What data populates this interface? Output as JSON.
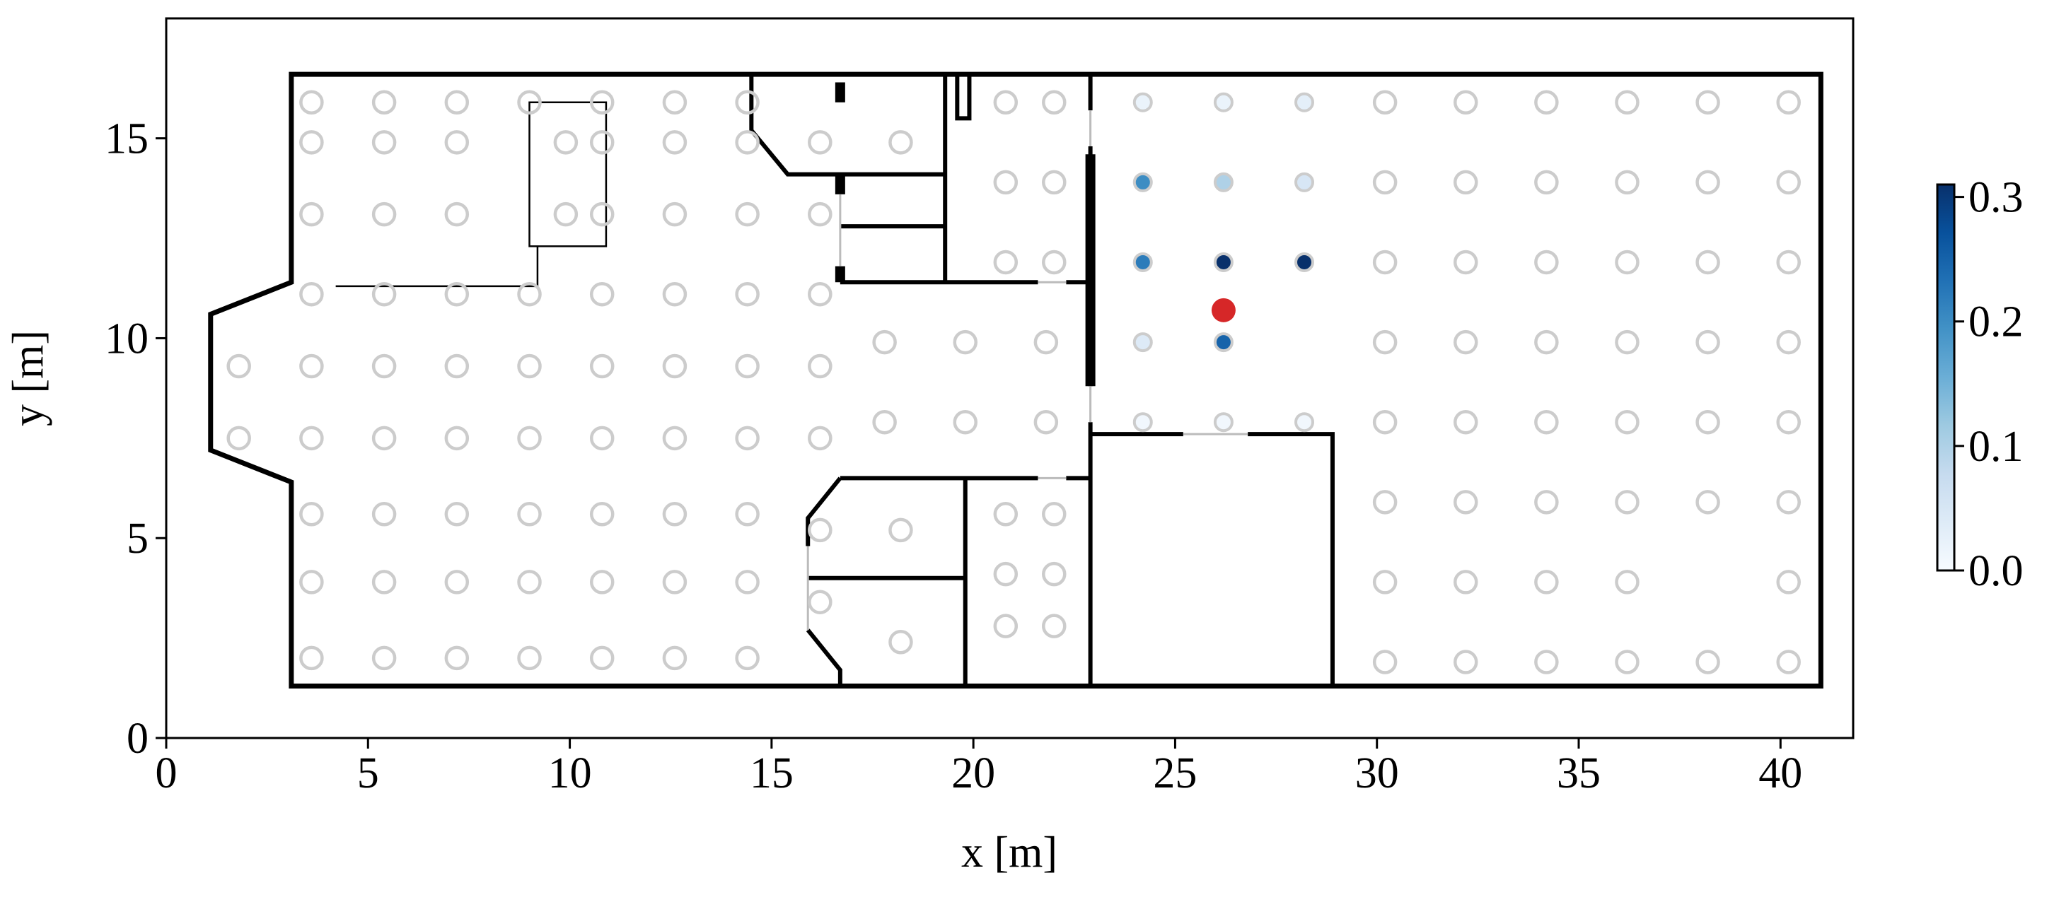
{
  "chart_data": {
    "type": "scatter",
    "xlabel": "x [m]",
    "ylabel": "y [m]",
    "xlim": [
      0,
      41.8
    ],
    "ylim": [
      0,
      18
    ],
    "xticks": [
      0,
      5,
      10,
      15,
      20,
      25,
      30,
      35,
      40
    ],
    "yticks": [
      0,
      5,
      10,
      15
    ],
    "cmap": "Blues",
    "clim": [
      0,
      0.31
    ],
    "cticks": [
      {
        "value": 0,
        "label": "0.0"
      },
      0.1,
      0.2,
      0.3
    ],
    "series": [
      {
        "color": "#cccccc",
        "x": [
          3.6,
          5.4,
          7.2,
          9.0,
          10.8,
          12.6,
          14.4,
          20.8,
          22.0,
          30.2,
          32.2,
          34.2,
          36.2,
          38.2,
          40.2,
          3.6,
          5.4,
          7.2,
          9.9,
          10.8,
          12.6,
          14.4,
          16.2,
          18.2,
          20.8,
          22.0,
          30.2,
          32.2,
          34.2,
          36.2,
          38.2,
          40.2,
          3.6,
          5.4,
          7.2,
          9.9,
          10.8,
          12.6,
          14.4,
          16.2,
          20.8,
          22.0,
          30.2,
          32.2,
          34.2,
          36.2,
          38.2,
          40.2,
          3.6,
          5.4,
          7.2,
          9.0,
          10.8,
          12.6,
          14.4,
          16.2,
          17.8,
          19.8,
          21.8,
          30.2,
          32.2,
          34.2,
          36.2,
          38.2,
          40.2,
          1.8,
          3.6,
          5.4,
          7.2,
          9.0,
          10.8,
          12.6,
          14.4,
          16.2,
          17.8,
          19.8,
          21.8,
          30.2,
          32.2,
          34.2,
          36.2,
          38.2,
          40.2,
          1.8,
          3.6,
          5.4,
          7.2,
          9.0,
          10.8,
          12.6,
          14.4,
          16.2,
          30.2,
          32.2,
          34.2,
          36.2,
          38.2,
          40.2,
          3.6,
          5.4,
          7.2,
          9.0,
          10.8,
          12.6,
          14.4,
          20.8,
          22.0,
          16.2,
          18.2,
          20.8,
          22.0,
          3.6,
          5.4,
          7.2,
          9.0,
          10.8,
          12.6,
          14.4,
          30.2,
          32.2,
          34.2,
          36.2,
          40.2,
          16.2,
          20.8,
          22.0,
          18.2,
          3.6,
          5.4,
          7.2,
          9.0,
          10.8,
          12.6,
          14.4,
          30.2,
          32.2,
          34.2,
          36.2,
          38.2,
          40.2
        ],
        "y": [
          15.9,
          15.9,
          15.9,
          15.9,
          15.9,
          15.9,
          15.9,
          15.9,
          15.9,
          15.9,
          15.9,
          15.9,
          15.9,
          15.9,
          15.9,
          14.9,
          14.9,
          14.9,
          14.9,
          14.9,
          14.9,
          14.9,
          14.9,
          14.9,
          13.9,
          13.9,
          13.9,
          13.9,
          13.9,
          13.9,
          13.9,
          13.9,
          13.1,
          13.1,
          13.1,
          13.1,
          13.1,
          13.1,
          13.1,
          13.1,
          11.9,
          11.9,
          11.9,
          11.9,
          11.9,
          11.9,
          11.9,
          11.9,
          11.1,
          11.1,
          11.1,
          11.1,
          11.1,
          11.1,
          11.1,
          11.1,
          9.9,
          9.9,
          9.9,
          9.9,
          9.9,
          9.9,
          9.9,
          9.9,
          9.9,
          9.3,
          9.3,
          9.3,
          9.3,
          9.3,
          9.3,
          9.3,
          9.3,
          9.3,
          7.9,
          7.9,
          7.9,
          7.9,
          7.9,
          7.9,
          7.9,
          7.9,
          7.9,
          7.5,
          7.5,
          7.5,
          7.5,
          7.5,
          7.5,
          7.5,
          7.5,
          7.5,
          5.9,
          5.9,
          5.9,
          5.9,
          5.9,
          5.9,
          5.6,
          5.6,
          5.6,
          5.6,
          5.6,
          5.6,
          5.6,
          5.6,
          5.6,
          5.2,
          5.2,
          4.1,
          4.1,
          3.9,
          3.9,
          3.9,
          3.9,
          3.9,
          3.9,
          3.9,
          3.9,
          3.9,
          3.9,
          3.9,
          3.9,
          3.4,
          2.8,
          2.8,
          2.4,
          2.0,
          2.0,
          2.0,
          2.0,
          2.0,
          2.0,
          2.0,
          1.9,
          1.9,
          1.9,
          1.9,
          1.9,
          1.9
        ]
      },
      {
        "x": [
          24.2,
          26.2,
          28.2,
          24.2,
          26.2,
          28.2,
          24.2,
          26.2,
          28.2,
          24.2,
          26.2,
          24.2,
          26.2,
          28.2
        ],
        "y": [
          15.9,
          15.9,
          15.9,
          13.9,
          13.9,
          13.9,
          11.9,
          11.9,
          11.9,
          9.9,
          9.9,
          7.9,
          7.9,
          7.9
        ],
        "values": [
          0.02,
          0.02,
          0.03,
          0.2,
          0.1,
          0.05,
          0.22,
          0.31,
          0.31,
          0.04,
          0.25,
          0.01,
          0.01,
          0.01
        ]
      },
      {
        "color": "#d62728",
        "x": [
          26.2
        ],
        "y": [
          10.7
        ]
      }
    ]
  }
}
